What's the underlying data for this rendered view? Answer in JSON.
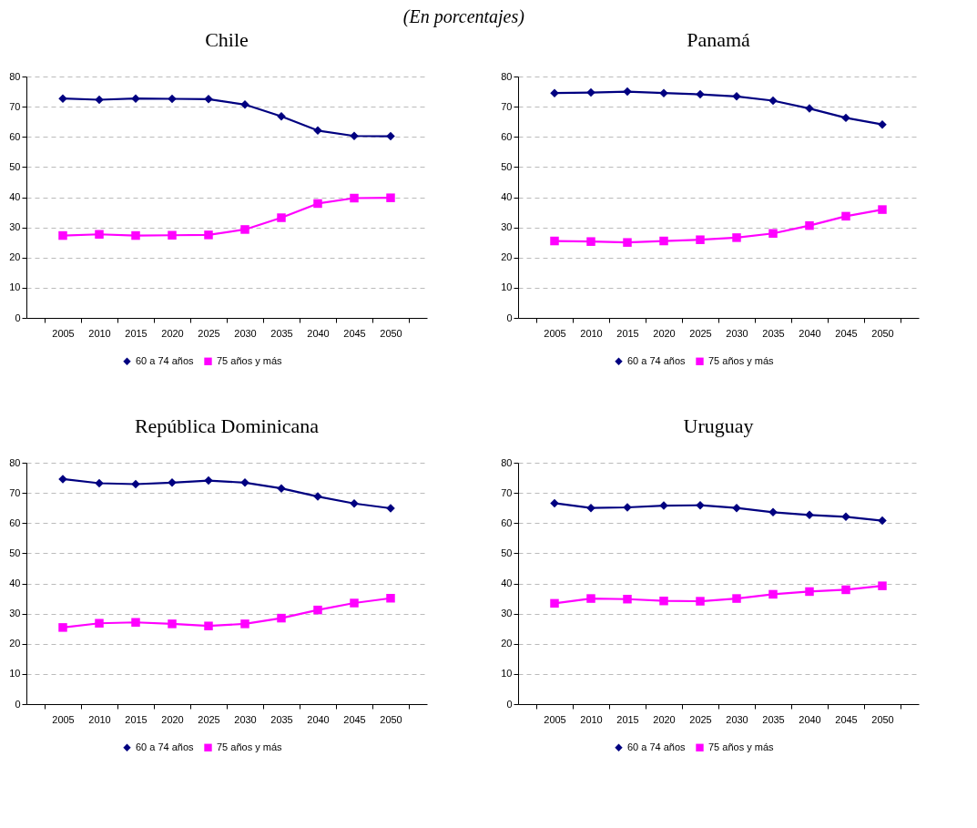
{
  "chart_data": [
    {
      "type": "line",
      "title": "Chile",
      "subtitle": "(En porcentajes)",
      "categories": [
        "2005",
        "2010",
        "2015",
        "2020",
        "2025",
        "2030",
        "2035",
        "2040",
        "2045",
        "2050"
      ],
      "ylim": [
        0,
        80
      ],
      "yticks": [
        0,
        10,
        20,
        30,
        40,
        50,
        60,
        70,
        80
      ],
      "grid": "y",
      "legend": "bottom",
      "series": [
        {
          "name": "60 a 74 años",
          "color": "#000080",
          "marker": "diamond",
          "values": [
            72.7,
            72.3,
            72.7,
            72.6,
            72.5,
            70.7,
            66.8,
            62.1,
            60.3,
            60.2
          ]
        },
        {
          "name": "75 años y más",
          "color": "#ff00ff",
          "marker": "square",
          "values": [
            27.3,
            27.7,
            27.3,
            27.4,
            27.5,
            29.3,
            33.2,
            37.9,
            39.7,
            39.8
          ]
        }
      ]
    },
    {
      "type": "line",
      "title": "Panamá",
      "categories": [
        "2005",
        "2010",
        "2015",
        "2020",
        "2025",
        "2030",
        "2035",
        "2040",
        "2045",
        "2050"
      ],
      "ylim": [
        0,
        80
      ],
      "yticks": [
        0,
        10,
        20,
        30,
        40,
        50,
        60,
        70,
        80
      ],
      "grid": "y",
      "legend": "bottom",
      "series": [
        {
          "name": "60 a 74 años",
          "color": "#000080",
          "marker": "diamond",
          "values": [
            74.5,
            74.7,
            75.0,
            74.5,
            74.1,
            73.4,
            72.0,
            69.4,
            66.3,
            64.1
          ]
        },
        {
          "name": "75 años y más",
          "color": "#ff00ff",
          "marker": "square",
          "values": [
            25.5,
            25.3,
            25.0,
            25.5,
            25.9,
            26.6,
            28.0,
            30.6,
            33.7,
            35.9
          ]
        }
      ]
    },
    {
      "type": "line",
      "title": "República Dominicana",
      "categories": [
        "2005",
        "2010",
        "2015",
        "2020",
        "2025",
        "2030",
        "2035",
        "2040",
        "2045",
        "2050"
      ],
      "ylim": [
        0,
        80
      ],
      "yticks": [
        0,
        10,
        20,
        30,
        40,
        50,
        60,
        70,
        80
      ],
      "grid": "y",
      "legend": "bottom",
      "series": [
        {
          "name": "60 a 74 años",
          "color": "#000080",
          "marker": "diamond",
          "values": [
            74.6,
            73.2,
            72.9,
            73.4,
            74.1,
            73.4,
            71.5,
            68.8,
            66.5,
            64.9
          ]
        },
        {
          "name": "75 años y más",
          "color": "#ff00ff",
          "marker": "square",
          "values": [
            25.4,
            26.8,
            27.1,
            26.6,
            25.9,
            26.6,
            28.5,
            31.2,
            33.5,
            35.1
          ]
        }
      ]
    },
    {
      "type": "line",
      "title": "Uruguay",
      "categories": [
        "2005",
        "2010",
        "2015",
        "2020",
        "2025",
        "2030",
        "2035",
        "2040",
        "2045",
        "2050"
      ],
      "ylim": [
        0,
        80
      ],
      "yticks": [
        0,
        10,
        20,
        30,
        40,
        50,
        60,
        70,
        80
      ],
      "grid": "y",
      "legend": "bottom",
      "series": [
        {
          "name": "60 a 74 años",
          "color": "#000080",
          "marker": "diamond",
          "values": [
            66.6,
            65.0,
            65.2,
            65.8,
            65.9,
            65.0,
            63.6,
            62.7,
            62.1,
            60.8
          ]
        },
        {
          "name": "75 años y más",
          "color": "#ff00ff",
          "marker": "square",
          "values": [
            33.4,
            35.0,
            34.8,
            34.2,
            34.1,
            35.0,
            36.4,
            37.3,
            37.9,
            39.2
          ]
        }
      ]
    }
  ]
}
